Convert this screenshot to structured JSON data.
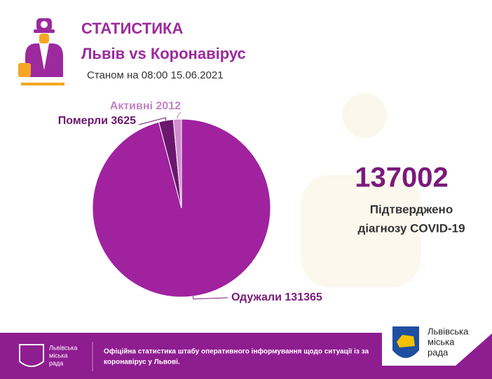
{
  "header": {
    "title": "СТАТИСТИКА",
    "subtitle": "Львів vs Коронавірус",
    "date": "Станом на 08:00 15.06.2021"
  },
  "chart_data": {
    "type": "pie",
    "categories": [
      "Одужали",
      "Померли",
      "Активні"
    ],
    "values": [
      131365,
      3625,
      2012
    ],
    "colors": [
      "#a0229f",
      "#6b176d",
      "#cf8fd0"
    ],
    "label_colors": [
      "#7a1a7c",
      "#6b176d",
      "#c183c4"
    ]
  },
  "summary": {
    "total": 137002,
    "caption_line1": "Підтверджено",
    "caption_line2": "діагнозу COVID-19"
  },
  "footer": {
    "left_logo": [
      "Львівська",
      "міська",
      "рада"
    ],
    "text_line1": "Офіційна статистика штабу оперативного інформування щодо ситуації із за",
    "text_line2": "коронавірус у Львові.",
    "right_logo": [
      "Львівська",
      "міська",
      "рада"
    ]
  }
}
